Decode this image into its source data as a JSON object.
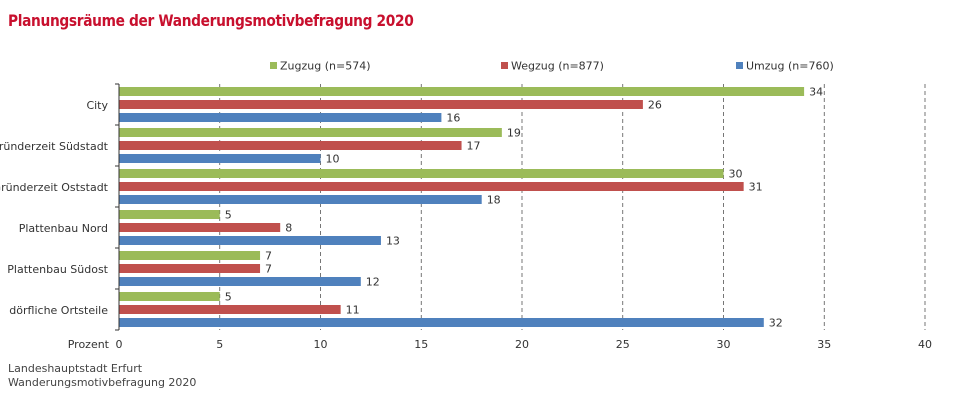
{
  "title": "Planungsräume der Wanderungsmotivbefragung 2020",
  "source": {
    "line1": "Landeshauptstadt Erfurt",
    "line2": "Wanderungsmotivbefragung 2020"
  },
  "colors": {
    "zugzug": "#9bbb59",
    "wegzug": "#c0504d",
    "umzug": "#4f81bd",
    "title": "#c8102e",
    "grid": "#555555"
  },
  "chart_data": {
    "type": "bar",
    "orientation": "horizontal",
    "title": "Planungsräume der Wanderungsmotivbefragung 2020",
    "xlabel": "Prozent",
    "ylabel": "",
    "xlim": [
      0,
      40
    ],
    "xticks": [
      0,
      5,
      10,
      15,
      20,
      25,
      30,
      35,
      40
    ],
    "grid": "vertical dashed",
    "legend_position": "top",
    "categories": [
      "City",
      "Gründerzeit Südstadt",
      "Gründerzeit Oststadt",
      "Plattenbau Nord",
      "Plattenbau Südost",
      "dörfliche Ortsteile"
    ],
    "series": [
      {
        "name": "Zugzug (n=574)",
        "color": "#9bbb59",
        "values": [
          34,
          19,
          30,
          5,
          7,
          5
        ]
      },
      {
        "name": "Wegzug (n=877)",
        "color": "#c0504d",
        "values": [
          26,
          17,
          31,
          8,
          7,
          11
        ]
      },
      {
        "name": "Umzug (n=760)",
        "color": "#4f81bd",
        "values": [
          16,
          10,
          18,
          13,
          12,
          32
        ]
      }
    ]
  }
}
